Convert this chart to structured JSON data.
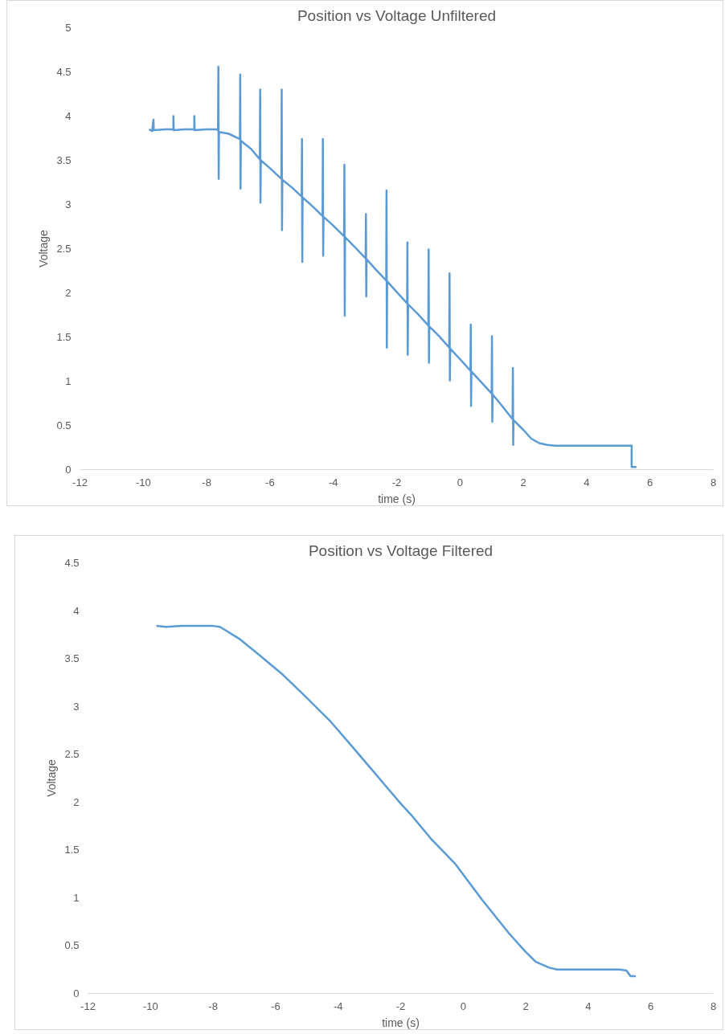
{
  "chart_data": [
    {
      "type": "line",
      "title": "Position vs Voltage Unfiltered",
      "xlabel": "time (s)",
      "ylabel": "Voltage",
      "xlim": [
        -12,
        8
      ],
      "ylim": [
        0,
        5
      ],
      "xticks": [
        -12,
        -10,
        -8,
        -6,
        -4,
        -2,
        0,
        2,
        4,
        6,
        8
      ],
      "yticks": [
        0,
        0.5,
        1,
        1.5,
        2,
        2.5,
        3,
        3.5,
        4,
        4.5,
        5
      ],
      "grid": false,
      "series": [
        {
          "color": "#5b9bd5",
          "x": [
            -9.82,
            -9.72,
            -9.68,
            -9.67,
            -9.3,
            -9.05,
            -9.05,
            -9.04,
            -8.7,
            -8.39,
            -8.39,
            -8.38,
            -8.0,
            -7.7,
            -7.64,
            -7.63,
            -7.62,
            -7.61,
            -7.3,
            -6.95,
            -6.94,
            -6.93,
            -6.92,
            -6.6,
            -6.32,
            -6.31,
            -6.3,
            -6.29,
            -6.0,
            -5.64,
            -5.63,
            -5.62,
            -5.61,
            -5.3,
            -5.0,
            -4.99,
            -4.98,
            -4.97,
            -4.66,
            -4.34,
            -4.33,
            -4.32,
            -4.31,
            -4.0,
            -3.66,
            -3.65,
            -3.64,
            -3.63,
            -3.3,
            -2.98,
            -2.97,
            -2.96,
            -2.95,
            -2.65,
            -2.33,
            -2.32,
            -2.31,
            -2.3,
            -2.0,
            -1.67,
            -1.66,
            -1.65,
            -1.64,
            -1.33,
            -1.0,
            -0.99,
            -0.98,
            -0.97,
            -0.66,
            -0.34,
            -0.33,
            -0.32,
            -0.31,
            0.0,
            0.33,
            0.34,
            0.35,
            0.36,
            0.67,
            1.0,
            1.01,
            1.02,
            1.03,
            1.33,
            1.66,
            1.67,
            1.68,
            1.69,
            2.0,
            2.25,
            2.5,
            2.75,
            3.0,
            4.0,
            5.0,
            5.42,
            5.42,
            5.57
          ],
          "values": [
            3.85,
            3.83,
            3.96,
            3.84,
            3.85,
            3.85,
            4.0,
            3.84,
            3.85,
            3.85,
            4.0,
            3.84,
            3.85,
            3.85,
            3.84,
            4.56,
            3.29,
            3.82,
            3.8,
            3.74,
            4.47,
            3.18,
            3.72,
            3.63,
            3.51,
            4.3,
            3.02,
            3.5,
            3.41,
            3.29,
            4.3,
            2.71,
            3.28,
            3.19,
            3.09,
            3.74,
            2.35,
            3.08,
            2.98,
            2.87,
            3.74,
            2.42,
            2.86,
            2.76,
            2.64,
            3.45,
            1.74,
            2.63,
            2.51,
            2.39,
            2.89,
            1.96,
            2.38,
            2.26,
            2.14,
            3.16,
            1.38,
            2.13,
            2.01,
            1.88,
            2.57,
            1.3,
            1.87,
            1.76,
            1.63,
            2.49,
            1.21,
            1.62,
            1.51,
            1.38,
            2.22,
            1.01,
            1.37,
            1.25,
            1.12,
            1.64,
            0.72,
            1.11,
            0.99,
            0.86,
            1.51,
            0.54,
            0.85,
            0.72,
            0.57,
            1.15,
            0.28,
            0.56,
            0.45,
            0.35,
            0.3,
            0.28,
            0.27,
            0.27,
            0.27,
            0.27,
            0.03,
            0.03
          ]
        }
      ]
    },
    {
      "type": "line",
      "title": "Position vs Voltage Filtered",
      "xlabel": "time (s)",
      "ylabel": "Voltage",
      "xlim": [
        -12,
        8
      ],
      "ylim": [
        0,
        4.5
      ],
      "xticks": [
        -12,
        -10,
        -8,
        -6,
        -4,
        -2,
        0,
        2,
        4,
        6,
        8
      ],
      "yticks": [
        0,
        0.5,
        1,
        1.5,
        2,
        2.5,
        3,
        3.5,
        4,
        4.5
      ],
      "grid": false,
      "series": [
        {
          "color": "#5b9bd5",
          "x": [
            -9.81,
            -9.5,
            -9.0,
            -8.5,
            -8.0,
            -7.78,
            -7.18,
            -6.57,
            -5.8,
            -5.1,
            -4.24,
            -3.63,
            -2.95,
            -2.25,
            -1.99,
            -1.65,
            -1.04,
            -0.27,
            0.6,
            1.46,
            1.98,
            2.32,
            2.75,
            3.0,
            4.0,
            5.0,
            5.22,
            5.35,
            5.52
          ],
          "values": [
            3.84,
            3.83,
            3.84,
            3.84,
            3.84,
            3.83,
            3.71,
            3.55,
            3.34,
            3.12,
            2.84,
            2.61,
            2.35,
            2.08,
            1.98,
            1.86,
            1.62,
            1.36,
            0.98,
            0.63,
            0.44,
            0.33,
            0.27,
            0.25,
            0.25,
            0.25,
            0.24,
            0.18,
            0.18
          ]
        }
      ]
    }
  ]
}
